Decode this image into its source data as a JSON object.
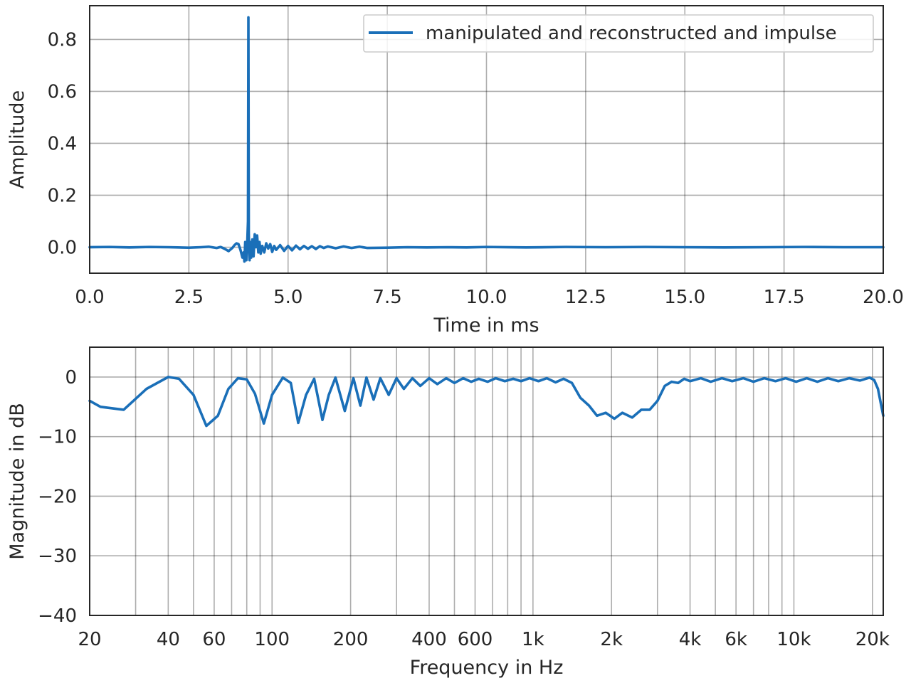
{
  "chart_data": [
    {
      "type": "line",
      "xlabel": "Time in ms",
      "ylabel": "Amplitude",
      "xlim": [
        0,
        20
      ],
      "ylim": [
        -0.1,
        0.93
      ],
      "xticks": [
        0,
        2.5,
        5,
        7.5,
        10,
        12.5,
        15,
        17.5,
        20
      ],
      "xtick_labels": [
        "0.0",
        "2.5",
        "5.0",
        "7.5",
        "10.0",
        "12.5",
        "15.0",
        "17.5",
        "20.0"
      ],
      "yticks": [
        0,
        0.2,
        0.4,
        0.6,
        0.8
      ],
      "ytick_labels": [
        "0.0",
        "0.2",
        "0.4",
        "0.6",
        "0.8"
      ],
      "grid": true,
      "legend": {
        "placement": "top-right",
        "entries": [
          "manipulated and reconstructed and impulse"
        ]
      },
      "series": [
        {
          "name": "manipulated and reconstructed and impulse",
          "color": "#1a6fb8",
          "x": [
            0,
            0.5,
            1.0,
            1.5,
            2.0,
            2.5,
            2.8,
            3.0,
            3.2,
            3.3,
            3.4,
            3.5,
            3.6,
            3.65,
            3.7,
            3.75,
            3.8,
            3.85,
            3.88,
            3.9,
            3.92,
            3.95,
            3.97,
            3.99,
            4.0,
            4.01,
            4.03,
            4.05,
            4.07,
            4.1,
            4.13,
            4.16,
            4.19,
            4.22,
            4.25,
            4.28,
            4.31,
            4.35,
            4.4,
            4.45,
            4.5,
            4.55,
            4.6,
            4.65,
            4.7,
            4.8,
            4.9,
            5.0,
            5.1,
            5.2,
            5.3,
            5.4,
            5.5,
            5.6,
            5.7,
            5.8,
            5.9,
            6.0,
            6.2,
            6.4,
            6.6,
            6.8,
            7.0,
            7.5,
            8.0,
            8.5,
            9.0,
            9.5,
            10.0,
            11.0,
            12.0,
            13.0,
            14.0,
            15.0,
            16.0,
            17.0,
            18.0,
            19.0,
            20.0
          ],
          "y": [
            0.0,
            0.001,
            -0.001,
            0.001,
            0.0,
            -0.002,
            0.0,
            0.002,
            -0.003,
            0.001,
            -0.006,
            -0.015,
            -0.002,
            0.008,
            0.015,
            0.012,
            -0.01,
            -0.04,
            -0.02,
            -0.055,
            0.02,
            -0.05,
            0.01,
            0.1,
            0.885,
            0.05,
            -0.05,
            0.02,
            -0.04,
            0.03,
            -0.035,
            0.05,
            0.0,
            0.045,
            -0.02,
            0.02,
            -0.025,
            0.005,
            -0.02,
            0.015,
            -0.005,
            0.012,
            -0.018,
            0.005,
            -0.01,
            0.008,
            -0.014,
            0.005,
            -0.012,
            0.006,
            -0.008,
            0.005,
            -0.006,
            0.004,
            -0.007,
            0.004,
            -0.003,
            0.003,
            -0.004,
            0.003,
            -0.003,
            0.002,
            -0.003,
            -0.002,
            0.0,
            -0.001,
            0.0,
            -0.001,
            0.001,
            -0.001,
            0.001,
            0.0,
            0.001,
            0.0,
            -0.001,
            0.0,
            0.001,
            0.0,
            0.0
          ]
        }
      ]
    },
    {
      "type": "line",
      "xlabel": "Frequency in Hz",
      "ylabel": "Magnitude in dB",
      "xscale": "log",
      "xlim": [
        20,
        22000
      ],
      "ylim": [
        -40,
        5
      ],
      "xticks": [
        20,
        40,
        60,
        100,
        200,
        400,
        600,
        1000,
        2000,
        4000,
        6000,
        10000,
        20000
      ],
      "xtick_labels": [
        "20",
        "40",
        "60",
        "100",
        "200",
        "400",
        "600",
        "1k",
        "2k",
        "4k",
        "6k",
        "10k",
        "20k"
      ],
      "x_gridlines": [
        30,
        40,
        50,
        60,
        70,
        80,
        90,
        100,
        200,
        300,
        400,
        500,
        600,
        700,
        800,
        900,
        1000,
        2000,
        3000,
        4000,
        5000,
        6000,
        7000,
        8000,
        9000,
        10000,
        20000
      ],
      "yticks": [
        0,
        -10,
        -20,
        -30,
        -40
      ],
      "ytick_labels": [
        "0",
        "−10",
        "−20",
        "−30",
        "−40"
      ],
      "grid": true,
      "series": [
        {
          "name": "",
          "color": "#1a6fb8",
          "x": [
            20,
            22,
            27,
            33,
            40,
            44,
            50,
            56,
            62,
            68,
            74,
            80,
            86,
            93,
            100,
            110,
            118,
            126,
            135,
            145,
            156,
            165,
            175,
            190,
            205,
            218,
            230,
            245,
            260,
            280,
            300,
            320,
            345,
            370,
            400,
            430,
            465,
            500,
            540,
            580,
            620,
            670,
            720,
            780,
            840,
            900,
            970,
            1050,
            1130,
            1220,
            1310,
            1410,
            1520,
            1640,
            1760,
            1900,
            2050,
            2200,
            2400,
            2600,
            2800,
            3000,
            3200,
            3400,
            3600,
            3800,
            4000,
            4400,
            4800,
            5300,
            5800,
            6400,
            7000,
            7700,
            8500,
            9300,
            10200,
            11200,
            12300,
            13500,
            14800,
            16300,
            17900,
            19500,
            20300,
            21000,
            22000
          ],
          "y": [
            -4.0,
            -5.0,
            -5.5,
            -2.0,
            0.0,
            -0.3,
            -3.0,
            -8.2,
            -6.5,
            -2.0,
            -0.2,
            -0.4,
            -2.8,
            -7.8,
            -3.0,
            -0.1,
            -1.0,
            -7.7,
            -3.0,
            -0.3,
            -7.2,
            -3.0,
            -0.1,
            -5.7,
            -0.2,
            -4.8,
            -0.1,
            -3.8,
            -0.2,
            -3.0,
            -0.2,
            -2.0,
            -0.2,
            -1.5,
            -0.2,
            -1.2,
            -0.2,
            -1.0,
            -0.2,
            -0.8,
            -0.3,
            -0.8,
            -0.2,
            -0.7,
            -0.3,
            -0.7,
            -0.2,
            -0.7,
            -0.2,
            -0.9,
            -0.3,
            -1.0,
            -3.5,
            -4.8,
            -6.5,
            -6.0,
            -7.0,
            -6.0,
            -6.8,
            -5.5,
            -5.5,
            -4.0,
            -1.5,
            -0.8,
            -1.0,
            -0.3,
            -0.7,
            -0.2,
            -0.8,
            -0.2,
            -0.7,
            -0.2,
            -0.8,
            -0.2,
            -0.7,
            -0.2,
            -0.8,
            -0.2,
            -0.8,
            -0.2,
            -0.7,
            -0.2,
            -0.6,
            -0.1,
            -0.5,
            -2.0,
            -6.5
          ]
        }
      ]
    }
  ]
}
